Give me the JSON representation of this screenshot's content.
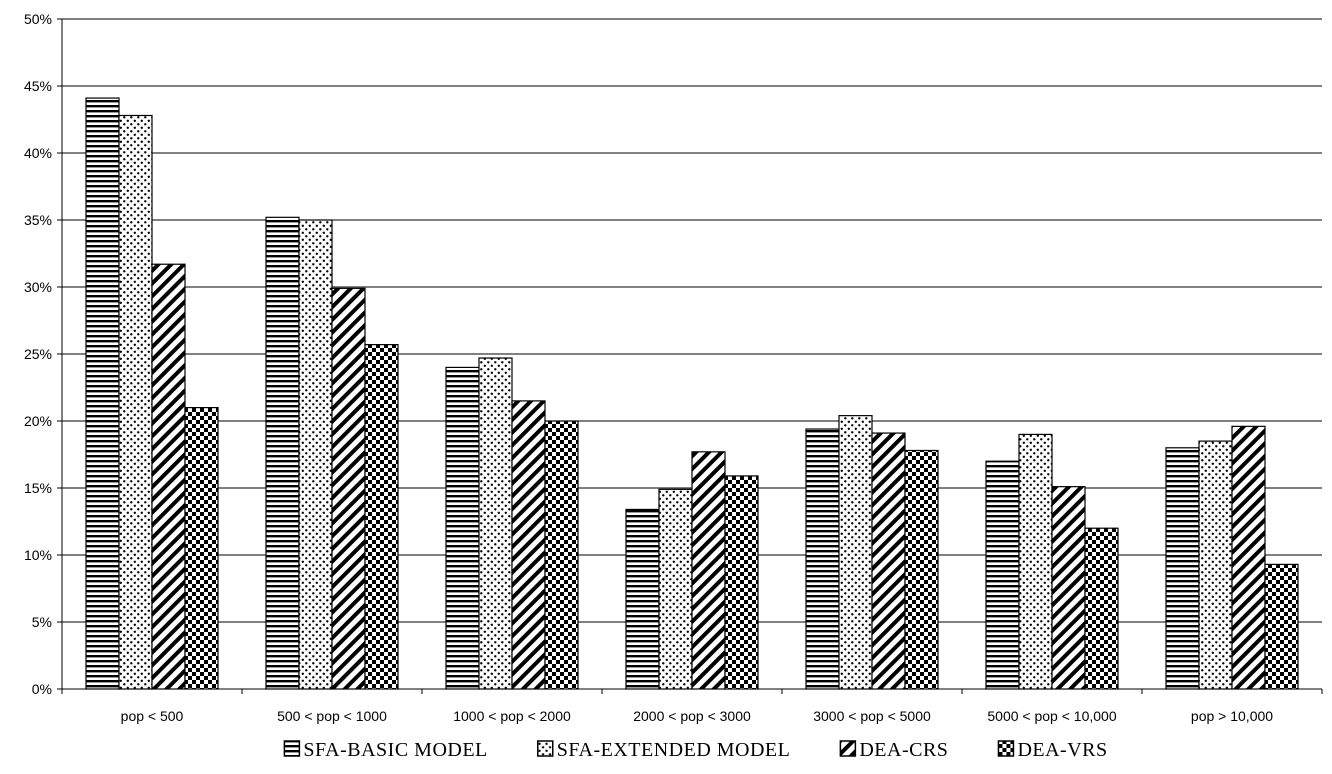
{
  "chart_data": {
    "type": "bar",
    "categories": [
      "pop < 500",
      "500 < pop < 1000",
      "1000 < pop < 2000",
      "2000 < pop < 3000",
      "3000 < pop < 5000",
      "5000 < pop < 10,000",
      "pop > 10,000"
    ],
    "series": [
      {
        "name": "SFA-BASIC MODEL",
        "pattern": "horizontal-lines",
        "values": [
          44.1,
          35.2,
          24.0,
          13.4,
          19.4,
          17.0,
          18.0
        ]
      },
      {
        "name": "SFA-EXTENDED MODEL",
        "pattern": "dots",
        "values": [
          42.8,
          35.0,
          24.7,
          14.9,
          20.4,
          19.0,
          18.5
        ]
      },
      {
        "name": "DEA-CRS",
        "pattern": "diagonal-lines",
        "values": [
          31.7,
          29.9,
          21.5,
          17.7,
          19.1,
          15.1,
          19.6
        ]
      },
      {
        "name": "DEA-VRS",
        "pattern": "checker",
        "values": [
          21.0,
          25.7,
          20.0,
          15.9,
          17.8,
          12.0,
          9.3
        ]
      }
    ],
    "yticks": [
      "0%",
      "5%",
      "10%",
      "15%",
      "20%",
      "25%",
      "30%",
      "35%",
      "40%",
      "45%",
      "50%"
    ],
    "ylim": [
      0,
      50
    ],
    "grid": true,
    "legend_position": "bottom",
    "colors": {
      "bar_fill": "#ffffff",
      "bar_pattern": "#000000",
      "grid": "#000000"
    }
  }
}
